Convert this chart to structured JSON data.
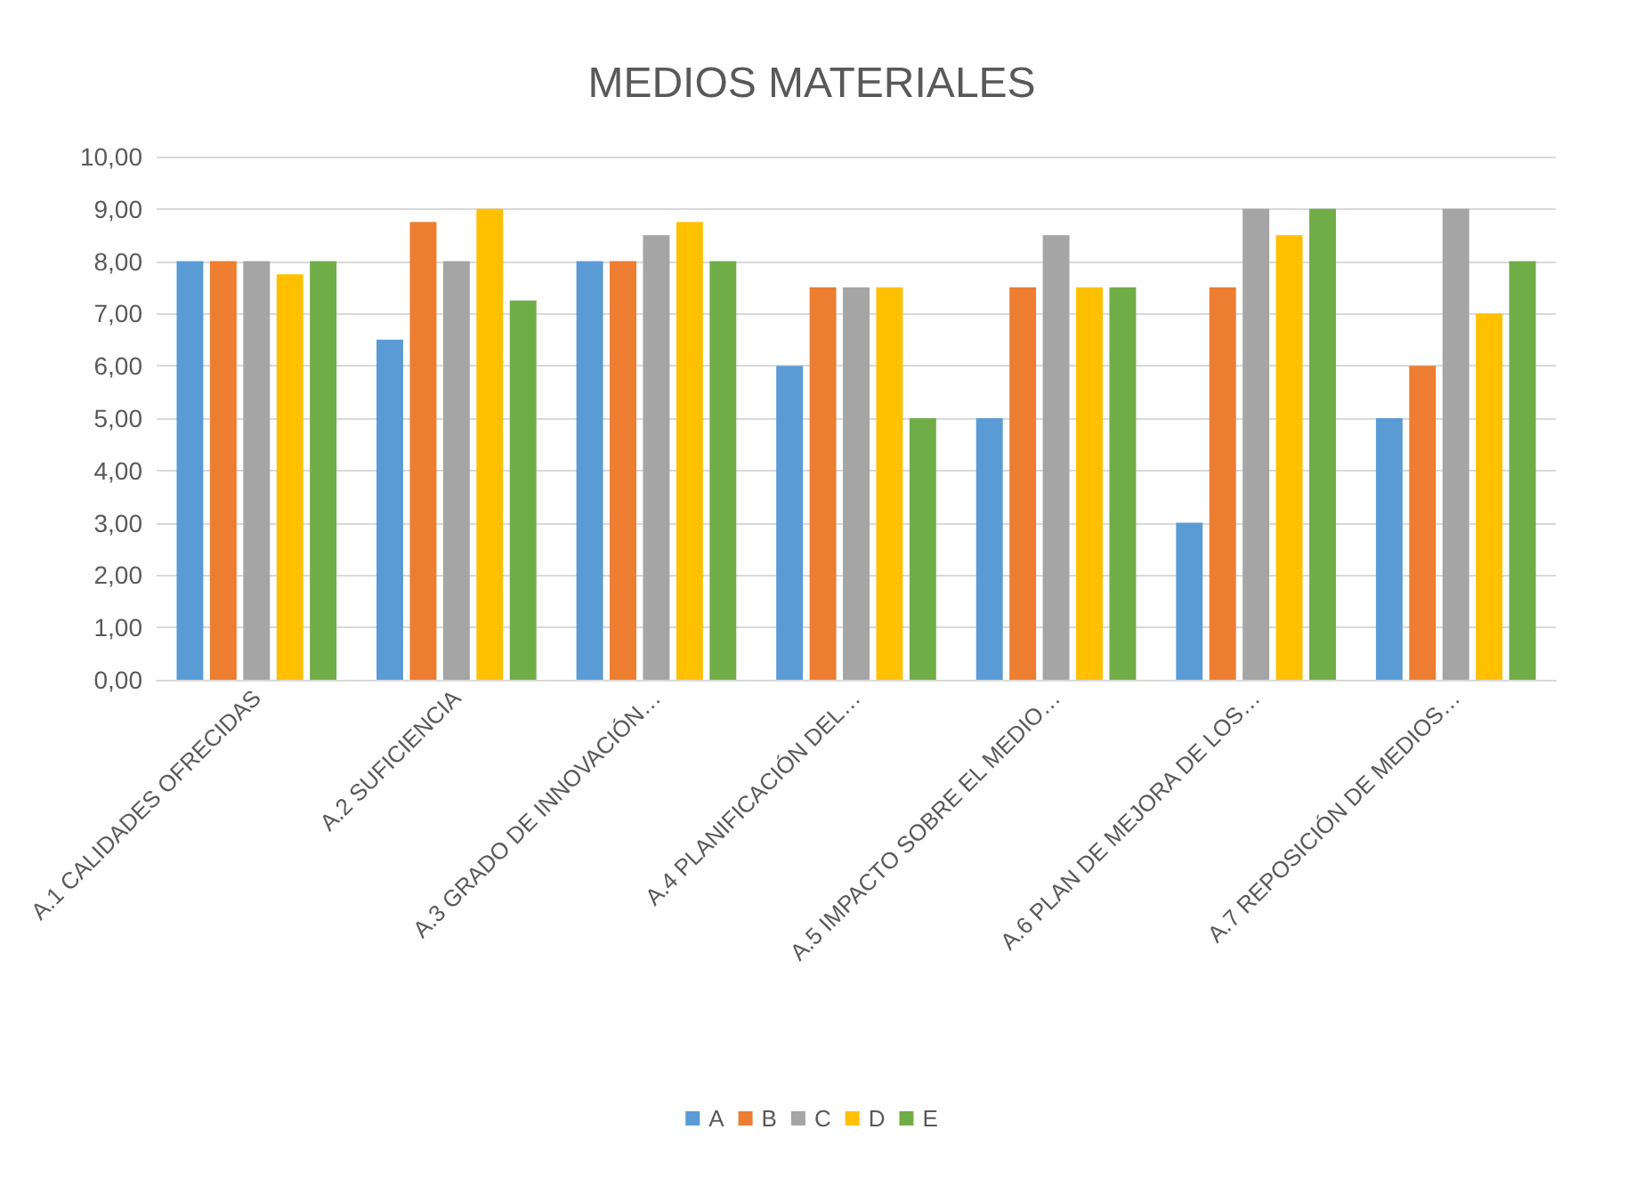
{
  "chart_data": {
    "type": "bar",
    "title": "MEDIOS MATERIALES",
    "categories": [
      "A.1 CALIDADES OFRECIDAS",
      "A.2 SUFICIENCIA",
      "A.3 GRADO DE INNOVACIÓN…",
      "A.4 PLANIFICACIÓN DEL…",
      "A.5 IMPACTO SOBRE EL MEDIO…",
      "A.6 PLAN DE MEJORA DE LOS…",
      "A.7 REPOSICIÓN DE MEDIOS…"
    ],
    "series": [
      {
        "name": "A",
        "color": "#5b9bd5",
        "values": [
          8,
          6.5,
          8,
          6,
          5,
          3,
          5
        ]
      },
      {
        "name": "B",
        "color": "#ed7d31",
        "values": [
          8,
          8.75,
          8,
          7.5,
          7.5,
          7.5,
          6
        ]
      },
      {
        "name": "C",
        "color": "#a5a5a5",
        "values": [
          8,
          8,
          8.5,
          7.5,
          8.5,
          9,
          9
        ]
      },
      {
        "name": "D",
        "color": "#ffc000",
        "values": [
          7.75,
          9,
          8.75,
          7.5,
          7.5,
          8.5,
          7
        ]
      },
      {
        "name": "E",
        "color": "#70ad47",
        "values": [
          8,
          7.25,
          8,
          5,
          7.5,
          9,
          8
        ]
      }
    ],
    "ylim": [
      0,
      10
    ],
    "yticks": [
      {
        "value": 0,
        "label": "0,00"
      },
      {
        "value": 1,
        "label": "1,00"
      },
      {
        "value": 2,
        "label": "2,00"
      },
      {
        "value": 3,
        "label": "3,00"
      },
      {
        "value": 4,
        "label": "4,00"
      },
      {
        "value": 5,
        "label": "5,00"
      },
      {
        "value": 6,
        "label": "6,00"
      },
      {
        "value": 7,
        "label": "7,00"
      },
      {
        "value": 8,
        "label": "8,00"
      },
      {
        "value": 9,
        "label": "9,00"
      },
      {
        "value": 10,
        "label": "10,00"
      }
    ],
    "grid": "y",
    "legend": "bottom"
  }
}
